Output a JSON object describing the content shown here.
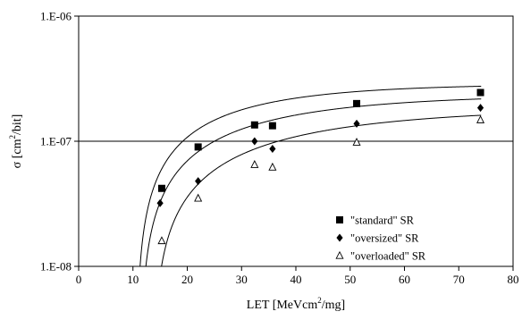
{
  "chart_data": {
    "type": "scatter",
    "title": "",
    "xlabel": {
      "main": "LET [MeVcm",
      "sup": "2",
      "end": "/mg]"
    },
    "ylabel": {
      "main": "σ [cm",
      "sup": "2",
      "end": "/bit]"
    },
    "xlim": [
      0,
      80
    ],
    "ylim": [
      1e-08,
      1e-06
    ],
    "yscale": "log",
    "x_ticks": [
      0,
      10,
      20,
      30,
      40,
      50,
      60,
      70,
      80
    ],
    "x_tick_labels": [
      "0",
      "10",
      "20",
      "30",
      "40",
      "50",
      "60",
      "70",
      "80"
    ],
    "y_ticks": [
      1e-08,
      1e-07,
      1e-06
    ],
    "y_tick_labels": [
      "1.E-08",
      "1.E-07",
      "1.E-06"
    ],
    "reference_line": {
      "y": 1e-07
    },
    "legend_position": "lower-right",
    "series": [
      {
        "name": "\"standard\" SR",
        "marker": "square-filled",
        "points": [
          {
            "x": 15.3,
            "y": 4.2e-08
          },
          {
            "x": 22.0,
            "y": 9e-08
          },
          {
            "x": 32.4,
            "y": 1.35e-07
          },
          {
            "x": 35.7,
            "y": 1.33e-07
          },
          {
            "x": 51.2,
            "y": 2e-07
          },
          {
            "x": 74.0,
            "y": 2.45e-07
          }
        ],
        "fit": {
          "sat": 2.87e-07,
          "threshold": 10.6,
          "width": 20,
          "shape": 1.0
        }
      },
      {
        "name": "\"oversized\" SR",
        "marker": "diamond-filled",
        "points": [
          {
            "x": 15.0,
            "y": 3.2e-08
          },
          {
            "x": 22.0,
            "y": 4.8e-08
          },
          {
            "x": 32.4,
            "y": 1e-07
          },
          {
            "x": 35.7,
            "y": 8.7e-08
          },
          {
            "x": 51.2,
            "y": 1.38e-07
          },
          {
            "x": 74.0,
            "y": 1.85e-07
          }
        ],
        "fit": {
          "sat": 2.37e-07,
          "threshold": 11.3,
          "width": 25,
          "shape": 1.0
        }
      },
      {
        "name": "\"overloaded\" SR",
        "marker": "triangle-open",
        "points": [
          {
            "x": 15.3,
            "y": 1.6e-08
          },
          {
            "x": 22.0,
            "y": 3.5e-08
          },
          {
            "x": 32.4,
            "y": 6.5e-08
          },
          {
            "x": 35.7,
            "y": 6.2e-08
          },
          {
            "x": 51.2,
            "y": 9.8e-08
          },
          {
            "x": 74.0,
            "y": 1.48e-07
          }
        ],
        "fit": {
          "sat": 1.86e-07,
          "threshold": 13.6,
          "width": 30,
          "shape": 1.0
        }
      }
    ]
  }
}
